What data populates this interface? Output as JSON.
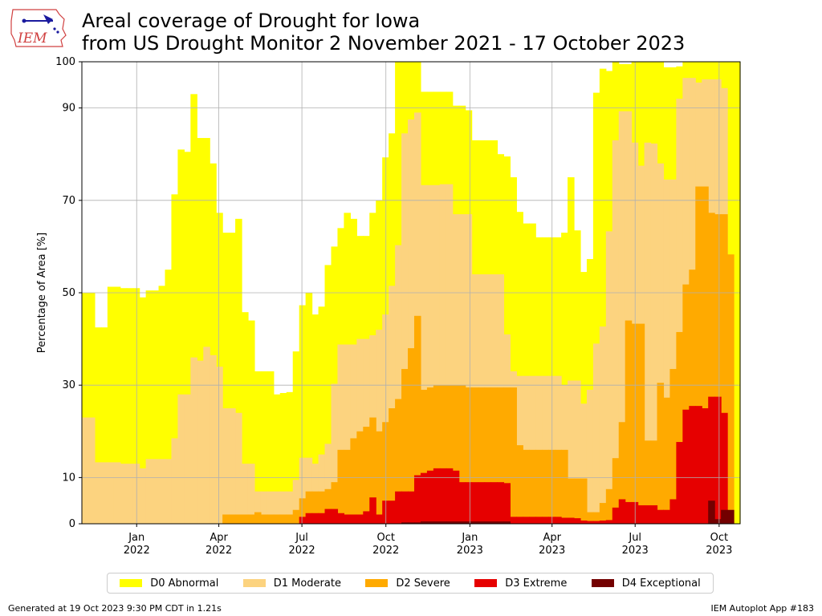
{
  "header": {
    "title_line1": "Areal coverage of Drought for Iowa",
    "title_line2": "from US Drought Monitor 2 November 2021 - 17 October 2023",
    "logo_text": "IEM"
  },
  "footer": {
    "generated": "Generated at 19 Oct 2023 9:30 PM CDT in 1.21s",
    "app": "IEM Autoplot App #183"
  },
  "chart_data": {
    "type": "area",
    "title": "Areal coverage of Drought for Iowa from US Drought Monitor 2 November 2021 - 17 October 2023",
    "ylabel": "Percentage of Area [%]",
    "xlabel": "",
    "ylim": [
      0,
      100
    ],
    "xlim": [
      "2021-11-02",
      "2023-10-24"
    ],
    "yticks": [
      0,
      10,
      30,
      50,
      70,
      90,
      100
    ],
    "xticks": [
      {
        "date": "2022-01-01",
        "label1": "Jan",
        "label2": "2022"
      },
      {
        "date": "2022-04-01",
        "label1": "Apr",
        "label2": "2022"
      },
      {
        "date": "2022-07-01",
        "label1": "Jul",
        "label2": "2022"
      },
      {
        "date": "2022-10-01",
        "label1": "Oct",
        "label2": "2022"
      },
      {
        "date": "2023-01-01",
        "label1": "Jan",
        "label2": "2023"
      },
      {
        "date": "2023-04-01",
        "label1": "Apr",
        "label2": "2023"
      },
      {
        "date": "2023-07-01",
        "label1": "Jul",
        "label2": "2023"
      },
      {
        "date": "2023-10-01",
        "label1": "Oct",
        "label2": "2023"
      }
    ],
    "grid": true,
    "legend_position": "bottom",
    "series": [
      {
        "name": "D0 Abnormal",
        "color": "#ffff00"
      },
      {
        "name": "D1 Moderate",
        "color": "#fcd37f"
      },
      {
        "name": "D2 Severe",
        "color": "#ffaa00"
      },
      {
        "name": "D3 Extreme",
        "color": "#e60000"
      },
      {
        "name": "D4 Exceptional",
        "color": "#730000"
      }
    ],
    "dates": [
      "2021-11-02",
      "2021-11-09",
      "2021-11-16",
      "2021-11-23",
      "2021-11-30",
      "2021-12-07",
      "2021-12-14",
      "2021-12-21",
      "2021-12-28",
      "2022-01-04",
      "2022-01-11",
      "2022-01-18",
      "2022-01-25",
      "2022-02-01",
      "2022-02-08",
      "2022-02-15",
      "2022-02-22",
      "2022-03-01",
      "2022-03-08",
      "2022-03-15",
      "2022-03-22",
      "2022-03-29",
      "2022-04-05",
      "2022-04-12",
      "2022-04-19",
      "2022-04-26",
      "2022-05-03",
      "2022-05-10",
      "2022-05-17",
      "2022-05-24",
      "2022-05-31",
      "2022-06-07",
      "2022-06-14",
      "2022-06-21",
      "2022-06-28",
      "2022-07-05",
      "2022-07-12",
      "2022-07-19",
      "2022-07-26",
      "2022-08-02",
      "2022-08-09",
      "2022-08-16",
      "2022-08-23",
      "2022-08-30",
      "2022-09-06",
      "2022-09-13",
      "2022-09-20",
      "2022-09-27",
      "2022-10-04",
      "2022-10-11",
      "2022-10-18",
      "2022-10-25",
      "2022-11-01",
      "2022-11-08",
      "2022-11-15",
      "2022-11-22",
      "2022-11-29",
      "2022-12-06",
      "2022-12-13",
      "2022-12-20",
      "2022-12-27",
      "2023-01-03",
      "2023-01-10",
      "2023-01-17",
      "2023-01-24",
      "2023-01-31",
      "2023-02-07",
      "2023-02-14",
      "2023-02-21",
      "2023-02-28",
      "2023-03-07",
      "2023-03-14",
      "2023-03-21",
      "2023-03-28",
      "2023-04-04",
      "2023-04-11",
      "2023-04-18",
      "2023-04-25",
      "2023-05-02",
      "2023-05-09",
      "2023-05-16",
      "2023-05-23",
      "2023-05-30",
      "2023-06-06",
      "2023-06-13",
      "2023-06-20",
      "2023-06-27",
      "2023-07-04",
      "2023-07-11",
      "2023-07-18",
      "2023-07-25",
      "2023-08-01",
      "2023-08-08",
      "2023-08-15",
      "2023-08-22",
      "2023-08-29",
      "2023-09-05",
      "2023-09-12",
      "2023-09-19",
      "2023-09-26",
      "2023-10-03",
      "2023-10-10",
      "2023-10-17"
    ],
    "d0": [
      50,
      50,
      42.5,
      42.5,
      51.3,
      51.3,
      51,
      51,
      51,
      49,
      50.5,
      50.5,
      51.5,
      55,
      71.3,
      81,
      80.5,
      93,
      83.5,
      83.5,
      78,
      67.3,
      63,
      63,
      66,
      45.8,
      44,
      33,
      33,
      33,
      28,
      28.3,
      28.5,
      37.3,
      47.3,
      50,
      45.3,
      47,
      56,
      60,
      64,
      67.3,
      66,
      62.3,
      62.3,
      67.3,
      70,
      79.3,
      84.5,
      100,
      100,
      100,
      100,
      93.5,
      93.5,
      93.5,
      93.5,
      93.5,
      90.5,
      90.5,
      89.5,
      83,
      83,
      83,
      83,
      80,
      79.5,
      75,
      67.5,
      65,
      65,
      62,
      62,
      62,
      62,
      63,
      75,
      63.5,
      54.5,
      57.3,
      93.3,
      98.5,
      98,
      100,
      99.5,
      99.5,
      100,
      100,
      100,
      100,
      100,
      98.8,
      98.8,
      99,
      100,
      100,
      100,
      100,
      100,
      100,
      100,
      100,
      100
    ],
    "d1": [
      23,
      23,
      13.3,
      13.3,
      13.3,
      13.3,
      13,
      13,
      13,
      12,
      14,
      14,
      14,
      14,
      18.5,
      28,
      28,
      36,
      35.3,
      38.3,
      36.5,
      34,
      25,
      25,
      24,
      13,
      13,
      7,
      7,
      7,
      7,
      7,
      7,
      9.5,
      14.3,
      14.3,
      13,
      15,
      17.3,
      30.3,
      38.8,
      38.8,
      38.8,
      40,
      40,
      40.8,
      42,
      45.3,
      51.5,
      60.3,
      84.5,
      87.5,
      89,
      73.3,
      73.3,
      73.3,
      73.5,
      73.5,
      67,
      67,
      67,
      54,
      54,
      54,
      54,
      54,
      41,
      33,
      32,
      32,
      32,
      32,
      32,
      32,
      32,
      30,
      31,
      31,
      26,
      29,
      39,
      42.7,
      63.3,
      83,
      89.3,
      89.3,
      82.5,
      77.5,
      82.5,
      82.3,
      78,
      74.5,
      74.5,
      92,
      96.5,
      96.5,
      95.5,
      96.2,
      96.2,
      96.2,
      94.3
    ],
    "d2": [
      0,
      0,
      0,
      0,
      0,
      0,
      0,
      0,
      0,
      0,
      0,
      0,
      0,
      0,
      0,
      0,
      0,
      0,
      0,
      0,
      0,
      0,
      2,
      2,
      2,
      2,
      2,
      2.5,
      2,
      2,
      2,
      2,
      2,
      3,
      5.5,
      7,
      7,
      7,
      7.5,
      9,
      16,
      16,
      18.5,
      20,
      21,
      23,
      20,
      22,
      25,
      27,
      33.5,
      38,
      45,
      29,
      29.5,
      30,
      30,
      30,
      30,
      30,
      29.5,
      29.5,
      29.5,
      29.5,
      29.5,
      29.5,
      29.5,
      29.5,
      17,
      16,
      16,
      16,
      16,
      16,
      16,
      16,
      9.8,
      9.8,
      9.8,
      2.5,
      2.5,
      4.5,
      7.5,
      14.2,
      22,
      44,
      43.3,
      43.3,
      18,
      18,
      30.5,
      27.3,
      33.5,
      41.5,
      51.8,
      55,
      73,
      73,
      67.3,
      67,
      67,
      58.3
    ],
    "d3": [
      0,
      0,
      0,
      0,
      0,
      0,
      0,
      0,
      0,
      0,
      0,
      0,
      0,
      0,
      0,
      0,
      0,
      0,
      0,
      0,
      0,
      0,
      0,
      0,
      0,
      0,
      0,
      0,
      0,
      0,
      0,
      0,
      0,
      0,
      1.5,
      2.3,
      2.3,
      2.3,
      3.2,
      3.2,
      2.3,
      2,
      2,
      2,
      2.7,
      5.7,
      2,
      5,
      5,
      7,
      7,
      7,
      10.5,
      11,
      11.5,
      12,
      12,
      12,
      11.5,
      9,
      9,
      9,
      9,
      9,
      9,
      9,
      8.8,
      1.5,
      1.5,
      1.5,
      1.5,
      1.5,
      1.5,
      1.5,
      1.5,
      1.3,
      1.3,
      1.2,
      0.7,
      0.6,
      0.6,
      0.7,
      0.8,
      3.5,
      5.3,
      4.7,
      4.7,
      4,
      4,
      4,
      3,
      3,
      5.3,
      17.7,
      24.7,
      25.5,
      25.5,
      25,
      27.5,
      27.5,
      24
    ],
    "d4": [
      0,
      0,
      0,
      0,
      0,
      0,
      0,
      0,
      0,
      0,
      0,
      0,
      0,
      0,
      0,
      0,
      0,
      0,
      0,
      0,
      0,
      0,
      0,
      0,
      0,
      0,
      0,
      0,
      0,
      0,
      0,
      0,
      0,
      0,
      0,
      0,
      0,
      0,
      0,
      0,
      0,
      0,
      0,
      0,
      0,
      0,
      0,
      0,
      0,
      0,
      0.3,
      0.3,
      0.3,
      0.5,
      0.5,
      0.5,
      0.5,
      0.5,
      0.5,
      0.5,
      0.5,
      0.5,
      0.5,
      0.5,
      0.5,
      0.5,
      0.5,
      0,
      0,
      0,
      0,
      0,
      0,
      0,
      0,
      0,
      0,
      0,
      0,
      0,
      0,
      0,
      0,
      0,
      0,
      0,
      0,
      0,
      0,
      0,
      0,
      0,
      0,
      0,
      0,
      0,
      0,
      0,
      5,
      1,
      3,
      3,
      0
    ]
  }
}
